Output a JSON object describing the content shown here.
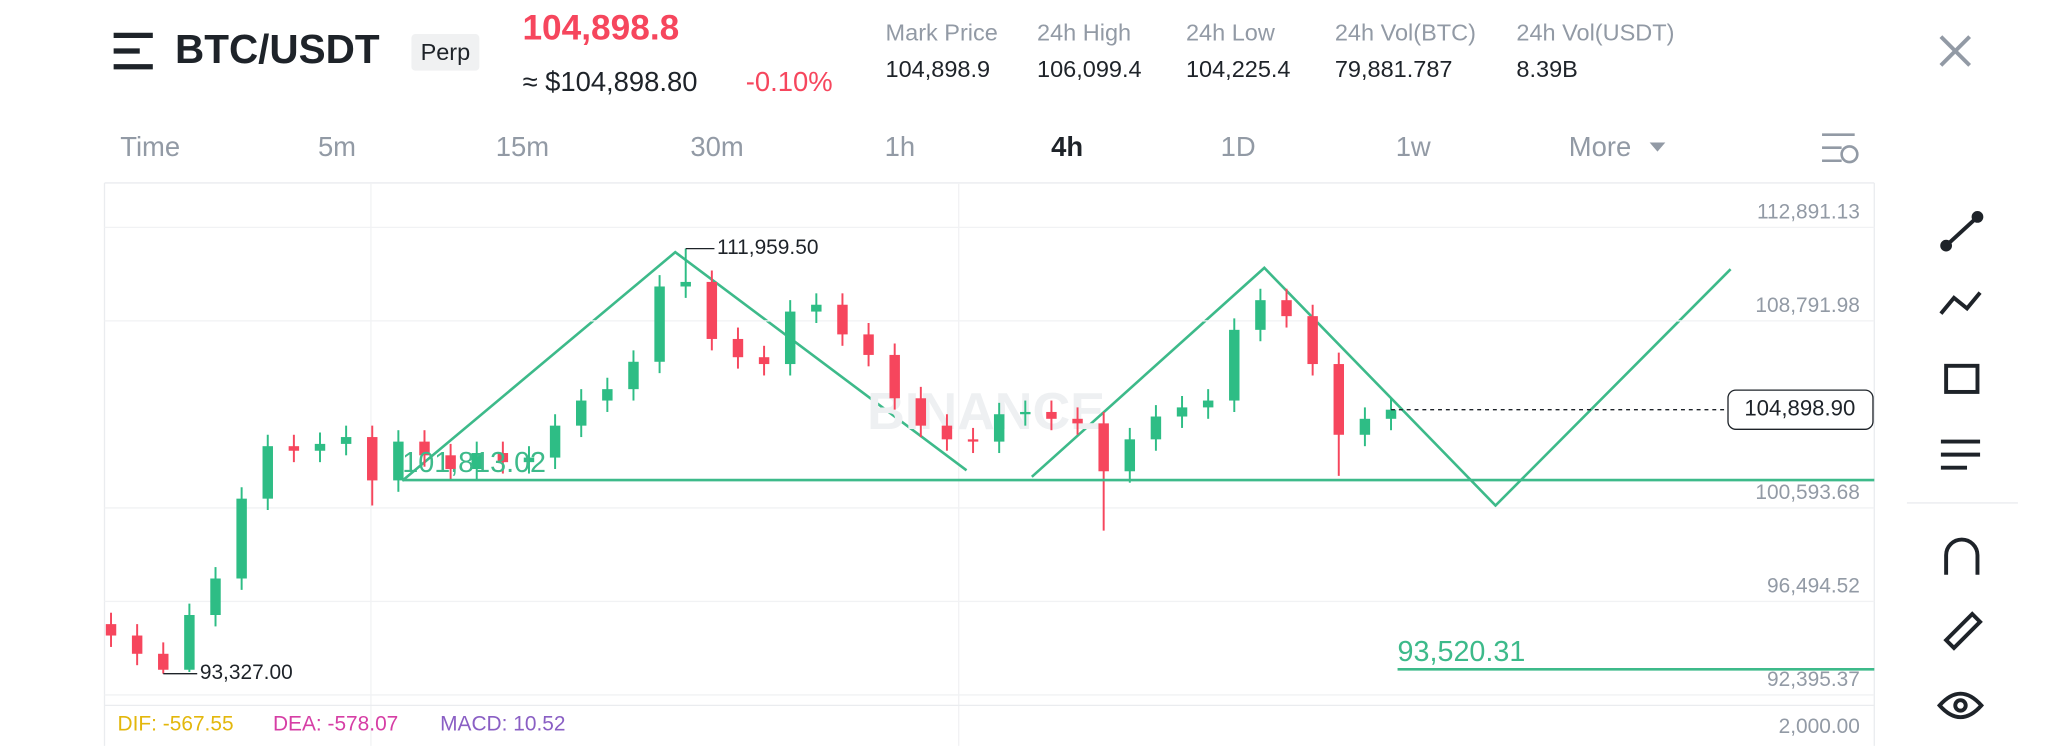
{
  "header": {
    "title": "BTC/USDT",
    "badge": "Perp",
    "last_price": "104,898.8",
    "usd_price": "≈ $104,898.80",
    "change": "-0.10%",
    "stats": [
      {
        "label": "Mark Price",
        "value": "104,898.9"
      },
      {
        "label": "24h High",
        "value": "106,099.4"
      },
      {
        "label": "24h Low",
        "value": "104,225.4"
      },
      {
        "label": "24h Vol(BTC)",
        "value": "79,881.787"
      },
      {
        "label": "24h Vol(USDT)",
        "value": "8.39B"
      }
    ]
  },
  "timeframes": [
    "Time",
    "5m",
    "15m",
    "30m",
    "1h",
    "4h",
    "1D",
    "1w",
    "More"
  ],
  "chart": {
    "type": "candlestick",
    "watermark": "BINANCE",
    "ylim": [
      91937,
      114838
    ],
    "yticks": [
      {
        "value": 112891.13,
        "label": "112,891.13"
      },
      {
        "value": 108791.98,
        "label": "108,791.98"
      },
      {
        "value": 100593.68,
        "label": "100,593.68"
      },
      {
        "value": 96494.52,
        "label": "96,494.52"
      },
      {
        "value": 92395.37,
        "label": "92,395.37"
      }
    ],
    "open": [
      95500,
      95000,
      94200,
      93500,
      95900,
      97500,
      101000,
      103300,
      103100,
      103400,
      103700,
      101800,
      103500,
      102900,
      102300,
      103000,
      102600,
      102800,
      104200,
      105300,
      105800,
      107000,
      110300,
      110500,
      108000,
      107200,
      106900,
      109200,
      109500,
      108200,
      107300,
      105400,
      104200,
      103600,
      103500,
      104700,
      104800,
      104500,
      104300,
      102200,
      103600,
      104600,
      105000,
      105300,
      108400,
      109700,
      109000,
      106900,
      103800,
      104500
    ],
    "high": [
      96000,
      95500,
      94700,
      96400,
      98000,
      101500,
      103800,
      103800,
      103900,
      104200,
      104200,
      104000,
      104000,
      103400,
      103500,
      103500,
      103300,
      104700,
      105800,
      106300,
      107500,
      110800,
      111959.5,
      111000,
      108500,
      107700,
      109700,
      110000,
      110000,
      108700,
      107800,
      105900,
      104700,
      104100,
      105200,
      105300,
      105300,
      105000,
      104800,
      104100,
      105100,
      105500,
      105800,
      108900,
      110200,
      110200,
      109500,
      107400,
      105000,
      105400
    ],
    "low": [
      94500,
      93700,
      93327,
      93400,
      95400,
      97000,
      100500,
      102600,
      102600,
      102900,
      100700,
      101300,
      102400,
      101800,
      101800,
      102100,
      102100,
      102300,
      103700,
      104800,
      105300,
      106500,
      109800,
      107500,
      106700,
      106400,
      106400,
      108700,
      107700,
      106800,
      104900,
      103700,
      103100,
      103000,
      103000,
      104200,
      104000,
      103800,
      99600,
      101700,
      103100,
      104100,
      104500,
      104800,
      107900,
      108500,
      106400,
      102000,
      103300,
      104000
    ],
    "close": [
      95000,
      94200,
      93500,
      95900,
      97500,
      101000,
      103300,
      103100,
      103400,
      103700,
      101800,
      103500,
      102900,
      102300,
      103000,
      102600,
      102800,
      104200,
      105300,
      105800,
      107000,
      110300,
      110500,
      108000,
      107200,
      106900,
      109200,
      109500,
      108200,
      107300,
      105400,
      104200,
      103600,
      103500,
      104700,
      104800,
      104500,
      104300,
      102200,
      103600,
      104600,
      105000,
      105300,
      108400,
      109700,
      109000,
      106900,
      103800,
      104500,
      104900
    ],
    "up_color": "#2ebd85",
    "down_color": "#f6465d",
    "high_marker": {
      "value": 111959.5,
      "label": "111,959.50"
    },
    "low_marker": {
      "value": 93327,
      "label": "93,327.00"
    },
    "levels": [
      {
        "value": 101813.02,
        "label": "101,813.02"
      },
      {
        "value": 93520.31,
        "label": "93,520.31"
      }
    ],
    "current_price": {
      "value": 104898.9,
      "label": "104,898.90"
    }
  },
  "macd": {
    "dif": "DIF: -567.55",
    "dea": "DEA: -578.07",
    "macd": "MACD: 10.52",
    "tick": "2,000.00"
  }
}
